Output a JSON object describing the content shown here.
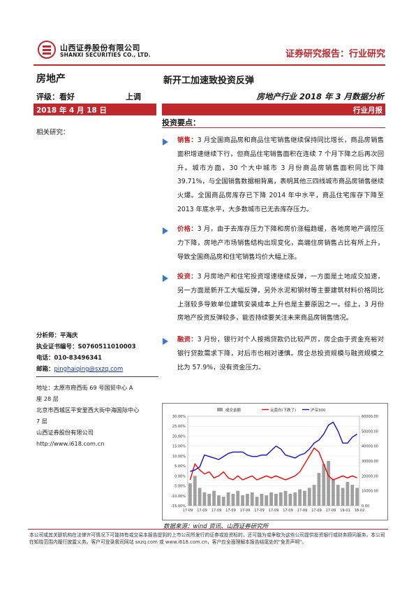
{
  "header": {
    "company_cn": "山西证券股份有限公司",
    "company_en": "SHANXI SECURITIES CO., LTD.",
    "report_type": "证券研究报告：行业研究",
    "accent": "#c0282d"
  },
  "left": {
    "industry": "房地产",
    "rating_label": "评级：",
    "rating": "看好",
    "rating_change": "上调",
    "date": "2018 年 4 月 18 日",
    "related": "相关研究：",
    "analyst_label": "分析师：",
    "analyst": "平海庆",
    "cert_label": "执业证书编号：",
    "cert": "S0760511010003",
    "phone_label": "电话：",
    "phone": "010-83496341",
    "email_label": "邮箱：",
    "email": "pinghaiqing@sxzq.com",
    "address1": "地址：太原市府西街 69 号国贸中心 A",
    "address2": "座 28 层",
    "address3": "北京市西城区平安里西大街中海国际中心",
    "address4": "7 层",
    "address5": "山西证券股份有限公司",
    "address6": "http://www.i618.com.cn"
  },
  "main": {
    "title": "新开工加速致投资反弹",
    "subtitle": "房地产行业 2018 年 3 月数据分析",
    "monthly": "行业月报",
    "invest_title": "投资要点：",
    "points": [
      {
        "kw": "销售：",
        "text": "3 月全国商品房和商品住宅销售继续保持同比增长，商品房销售面积增速继续下行，但商品住宅销售面积在连续 7 个月下降之后再次回升。城市方面，30 个大中城市 3 月份商品房销售面积同比下降 39.71%，与全国销售数据相背离，表明其他三四线城市商品房销售继续火爆。全国商品房库存已下降 2014 年中水平，商品住宅库存下降至 2013 年底水平，大多数城市已无去库存压力。"
      },
      {
        "kw": "价格：",
        "text": "3 月，由于去库存压力下降和房价涨幅趋缓，各地房地产调控压力下降，房地产市场销售结构出现变化，高端住房销售占比有所上升，导致全国商品房和住宅销售均价大幅上涨。"
      },
      {
        "kw": "投资：",
        "text": "3 月房地产和住宅投资增速继续反弹，一方面是土地成交加速，另一方面是新开工大幅反弹，另外水泥和钢材等主要建筑材料价格同比上涨较多导致单位建筑安装成本上升也是主要原因之一。综上，3 月份房地产投资反弹较多，能否持续要关注未来商品房销售情况。"
      },
      {
        "kw": "融资：",
        "text": "3 月份，银行对个人按揭贷款仍比较严厉，房企由于资金充裕对银行贷款需求下降，对后市也相对谨慎。房企总投资规模与融资规模之比为 57.9%，没有资金压力。"
      }
    ]
  },
  "chart_data": {
    "type": "line",
    "legend": [
      "成交金额",
      "云南白(下跌了)",
      "沪深300"
    ],
    "legend_position": "top",
    "y_left_ticks": [
      "30.00%",
      "25.00%",
      "20.00%",
      "15.00%",
      "10.00%",
      "5.00%",
      "0.00%",
      "-5.00%",
      "-10.00%",
      "-15.00%"
    ],
    "y_right_ticks": [
      "60000.00",
      "50000.00",
      "40000.00",
      "30000.00",
      "20000.00",
      "10000.00",
      "0.00"
    ],
    "x_ticks": [
      "17-09",
      "17-09",
      "17-09",
      "17-09",
      "17-09",
      "17-09",
      "17-09",
      "17-09",
      "17-09",
      "17-09",
      "17-09",
      "19-01",
      "18-02"
    ],
    "ylim_left": [
      -15,
      30
    ],
    "ylim_right": [
      0,
      60000
    ],
    "series_colors": [
      "#a0a0a0",
      "#ff0000",
      "#1010d0"
    ],
    "series": [
      {
        "name": "成交金额",
        "axis": "right",
        "values": [
          15000,
          20000,
          12000,
          9000,
          8000,
          10000,
          7000,
          6000,
          9000,
          8000,
          10000,
          7000,
          8000,
          9000,
          6000,
          8000,
          7000,
          9000,
          8000,
          9000,
          10000,
          8000,
          9000,
          11000,
          10000,
          12000,
          14000,
          22000,
          28000,
          30000,
          18000,
          14000,
          12000,
          16000,
          14000,
          12000
        ]
      },
      {
        "name": "云南白(下跌了)",
        "axis": "left",
        "values": [
          -2,
          6,
          3,
          1,
          2,
          -1,
          0,
          2,
          -1,
          -2,
          0,
          -2,
          -1,
          0,
          -2,
          -1,
          0,
          -1,
          0,
          -1,
          -2,
          -1,
          0,
          2,
          6,
          10,
          14,
          12,
          6,
          0,
          -2,
          -1,
          0,
          -1,
          0,
          -1
        ]
      },
      {
        "name": "沪深300",
        "axis": "right",
        "values": [
          23000,
          24000,
          26000,
          34000,
          33000,
          32000,
          31000,
          33000,
          35000,
          36000,
          36000,
          36000,
          34000,
          33000,
          33000,
          34000,
          34000,
          37000,
          40000,
          38000,
          34000,
          33000,
          32000,
          34000,
          35000,
          38000,
          42000,
          44000,
          48000,
          54000,
          56000,
          50000,
          42000,
          42000,
          46000,
          48000
        ]
      }
    ]
  },
  "chart_source": "数据来源：wind 资讯、山西证券研究所",
  "disclaimer": "本公司或其关联机构在法律许可情况下可能持有或交易本报告提到的上市公司所发行的证券或投资标的，还可能为或争取为这些公司提供投资银行或财务顾问服务。本公司在知晓范围内履行披露义务。客户可登录我司网站 sxzq.com 或 www.i618.com.cn，客户应全面理解本报告结尾处的\"免责声明\"。"
}
